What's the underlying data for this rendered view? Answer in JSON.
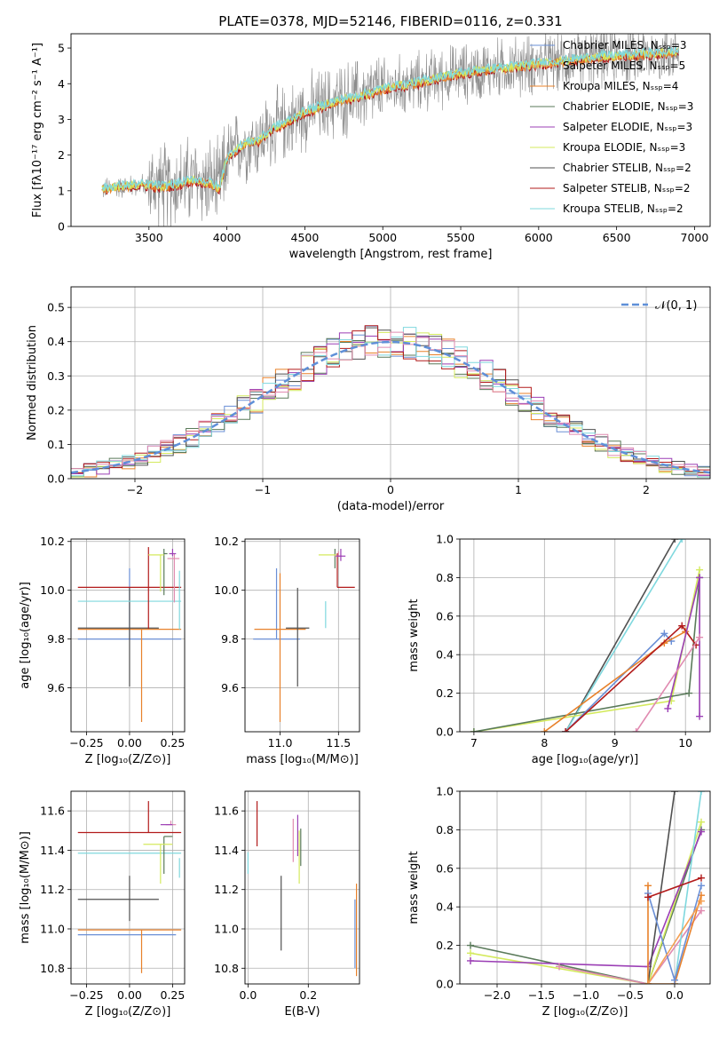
{
  "colors": {
    "chabrier_miles": "#6a8fd6",
    "salpeter_miles": "#f5a052",
    "kroupa_miles": "#e8812a",
    "chabrier_elodie": "#5a7a5a",
    "salpeter_elodie": "#9b3fb5",
    "kroupa_elodie": "#d4ea5e",
    "chabrier_stelib": "#505050",
    "salpeter_stelib": "#b21b1b",
    "kroupa_stelib": "#7fd8de",
    "extra_pink": "#e08ab0",
    "data_gray": "#8c8c8c",
    "normal_curve": "#5f8fd8",
    "grid": "#b0b0b0"
  },
  "chart_data": [
    {
      "id": "spectrum",
      "type": "line",
      "title": "PLATE=0378, MJD=52146, FIBERID=0116, z=0.331",
      "xlabel": "wavelength [Angstrom, rest frame]",
      "ylabel": "Flux [fλ10⁻¹⁷ erg cm⁻² s⁻¹ A⁻¹]",
      "xlim": [
        3000,
        7100
      ],
      "ylim": [
        0,
        5.4
      ],
      "xticks": [
        3500,
        4000,
        4500,
        5000,
        5500,
        6000,
        6500,
        7000
      ],
      "yticks": [
        0,
        1,
        2,
        3,
        4,
        5
      ],
      "grid": false,
      "legend_position": "top-right",
      "legend": [
        "Chabrier MILES, Nₛₛₚ=3",
        "Salpeter MILES, Nₛₛₚ=5",
        "Kroupa MILES, Nₛₛₚ=4",
        "Chabrier ELODIE, Nₛₛₚ=3",
        "Salpeter ELODIE, Nₛₛₚ=3",
        "Kroupa ELODIE, Nₛₛₚ=3",
        "Chabrier STELIB, Nₛₛₚ=2",
        "Salpeter STELIB, Nₛₛₚ=2",
        "Kroupa STELIB, Nₛₛₚ=2"
      ],
      "model_continuum": {
        "x": [
          3200,
          3300,
          3400,
          3500,
          3600,
          3700,
          3800,
          3900,
          3950,
          4000,
          4100,
          4200,
          4300,
          4400,
          4500,
          4600,
          4700,
          4800,
          4900,
          5000,
          5200,
          5400,
          5600,
          5800,
          6000,
          6200,
          6400,
          6600,
          6800,
          6900
        ],
        "y": [
          1.05,
          1.1,
          1.15,
          1.15,
          1.1,
          1.2,
          1.3,
          1.2,
          1.05,
          1.9,
          2.3,
          2.4,
          2.75,
          2.95,
          3.2,
          3.35,
          3.5,
          3.6,
          3.7,
          3.85,
          4.0,
          4.2,
          4.35,
          4.45,
          4.55,
          4.65,
          4.75,
          4.8,
          4.85,
          4.9
        ]
      },
      "data_noise_amplitude": [
        0.3,
        1.4
      ]
    },
    {
      "id": "residuals",
      "type": "line",
      "xlabel": "(data-model)/error",
      "ylabel": "Normed distribution",
      "xlim": [
        -2.5,
        2.5
      ],
      "ylim": [
        0,
        0.56
      ],
      "xticks": [
        -2,
        -1,
        0,
        1,
        2
      ],
      "yticks": [
        0.0,
        0.1,
        0.2,
        0.3,
        0.4,
        0.5
      ],
      "grid": true,
      "legend_position": "top-right",
      "legend": [
        "𝒩(0, 1)"
      ],
      "bin_width": 0.1,
      "bin_start": -2.5,
      "normal": {
        "mean": 0,
        "sigma": 1
      }
    },
    {
      "id": "age_vs_Z",
      "type": "scatter",
      "xlabel": "Z [log₁₀(Z/Z⊙)]",
      "ylabel": "age  [log₁₀(age/yr)]",
      "xlim": [
        -0.34,
        0.32
      ],
      "ylim": [
        9.42,
        10.21
      ],
      "xticks": [
        -0.25,
        0.0,
        0.25
      ],
      "xticklabels": [
        "−0.25",
        "0.00",
        "0.25"
      ],
      "yticks": [
        9.6,
        9.8,
        10.0,
        10.2
      ],
      "grid": true,
      "points": [
        {
          "c": "chabrier_miles",
          "x": 0.0,
          "xerr": [
            0.3,
            0.3
          ],
          "y": 9.8,
          "yerr": [
            0.0,
            0.29
          ]
        },
        {
          "c": "kroupa_miles",
          "x": 0.07,
          "xerr": [
            0.37,
            0.23
          ],
          "y": 9.84,
          "yerr": [
            0.38,
            0.0
          ]
        },
        {
          "c": "chabrier_stelib",
          "x": 0.0,
          "xerr": [
            0.3,
            0.17
          ],
          "y": 9.845,
          "yerr": [
            0.24,
            0.165
          ]
        },
        {
          "c": "kroupa_stelib",
          "x": 0.0,
          "xerr": [
            0.3,
            0.3
          ],
          "y": 9.955,
          "yerr": [
            0.0,
            0.0
          ]
        },
        {
          "c": "salpeter_stelib",
          "x": 0.11,
          "xerr": [
            0.41,
            0.19
          ],
          "y": 10.012,
          "yerr": [
            0.17,
            0.165
          ]
        },
        {
          "c": "chabrier_elodie",
          "x": 0.2,
          "xerr": [
            0.0,
            0.02
          ],
          "y": 10.15,
          "yerr": [
            0.17,
            0.02
          ]
        },
        {
          "c": "kroupa_elodie",
          "x": 0.18,
          "xerr": [
            0.07,
            0.02
          ],
          "y": 10.145,
          "yerr": [
            0.15,
            0.0
          ]
        },
        {
          "c": "extra_pink",
          "x": 0.26,
          "xerr": [
            0.04,
            0.03
          ],
          "y": 10.13,
          "yerr": [
            0.18,
            0.02
          ]
        },
        {
          "c": "salpeter_elodie",
          "x": 0.25,
          "xerr": [
            0.02,
            0.02
          ],
          "y": 10.15,
          "yerr": [
            0.01,
            0.02
          ]
        },
        {
          "c": "kroupa_stelib",
          "x": 0.29,
          "xerr": [
            0.0,
            0.0
          ],
          "y": 10.08,
          "yerr": [
            0.24,
            0.0
          ]
        }
      ]
    },
    {
      "id": "age_vs_mass",
      "type": "scatter",
      "xlabel": "mass [log₁₀(M/M⊙)]",
      "ylabel": "",
      "xlim": [
        10.7,
        11.68
      ],
      "ylim": [
        9.42,
        10.21
      ],
      "xticks": [
        11.0,
        11.5
      ],
      "yticks": [
        9.6,
        9.8,
        10.0,
        10.2
      ],
      "grid": true,
      "points": [
        {
          "c": "chabrier_miles",
          "x": 10.97,
          "xerr": [
            0.2,
            0.2
          ],
          "y": 9.8,
          "yerr": [
            0.0,
            0.29
          ]
        },
        {
          "c": "kroupa_miles",
          "x": 11.0,
          "xerr": [
            0.22,
            0.22
          ],
          "y": 9.84,
          "yerr": [
            0.38,
            0.23
          ]
        },
        {
          "c": "chabrier_stelib",
          "x": 11.15,
          "xerr": [
            0.1,
            0.1
          ],
          "y": 9.845,
          "yerr": [
            0.24,
            0.165
          ]
        },
        {
          "c": "kroupa_stelib",
          "x": 11.39,
          "xerr": [
            0.0,
            0.0
          ],
          "y": 9.955,
          "yerr": [
            0.11,
            0.0
          ]
        },
        {
          "c": "salpeter_stelib",
          "x": 11.49,
          "xerr": [
            0.0,
            0.15
          ],
          "y": 10.012,
          "yerr": [
            0.0,
            0.14
          ]
        },
        {
          "c": "chabrier_elodie",
          "x": 11.47,
          "xerr": [
            0.0,
            0.0
          ],
          "y": 10.15,
          "yerr": [
            0.06,
            0.02
          ]
        },
        {
          "c": "kroupa_elodie",
          "x": 11.43,
          "xerr": [
            0.1,
            0.05
          ],
          "y": 10.145,
          "yerr": [
            0.0,
            0.0
          ]
        },
        {
          "c": "extra_pink",
          "x": 11.5,
          "xerr": [
            0.03,
            0.03
          ],
          "y": 10.14,
          "yerr": [
            0.0,
            0.02
          ]
        },
        {
          "c": "salpeter_elodie",
          "x": 11.52,
          "xerr": [
            0.04,
            0.04
          ],
          "y": 10.14,
          "yerr": [
            0.02,
            0.03
          ]
        }
      ]
    },
    {
      "id": "mass_weight_vs_age",
      "type": "line",
      "xlabel": "age  [log₁₀(age/yr)]",
      "ylabel": "mass weight",
      "xlim": [
        6.8,
        10.35
      ],
      "ylim": [
        0,
        1.0
      ],
      "xticks": [
        7,
        8,
        9,
        10
      ],
      "yticks": [
        0.0,
        0.2,
        0.4,
        0.6,
        0.8,
        1.0
      ],
      "grid": true,
      "series": [
        {
          "c": "chabrier_stelib",
          "x": [
            8.3,
            9.85
          ],
          "y": [
            0.0,
            1.0
          ]
        },
        {
          "c": "kroupa_stelib",
          "x": [
            8.3,
            9.95
          ],
          "y": [
            0.0,
            1.0
          ]
        },
        {
          "c": "kroupa_elodie",
          "x": [
            7.0,
            9.8,
            10.2
          ],
          "y": [
            0.0,
            0.16,
            0.84
          ]
        },
        {
          "c": "chabrier_elodie",
          "x": [
            7.0,
            10.05,
            10.2
          ],
          "y": [
            0.0,
            0.2,
            0.8
          ]
        },
        {
          "c": "chabrier_miles",
          "x": [
            8.3,
            9.7,
            9.8
          ],
          "y": [
            0.0,
            0.51,
            0.47
          ]
        },
        {
          "c": "kroupa_miles",
          "x": [
            8.0,
            9.7,
            10.0
          ],
          "y": [
            0.0,
            0.46,
            0.52
          ]
        },
        {
          "c": "salpeter_stelib",
          "x": [
            8.3,
            9.95,
            10.15
          ],
          "y": [
            0.0,
            0.55,
            0.45
          ]
        },
        {
          "c": "salpeter_elodie",
          "x": [
            9.75,
            10.2,
            10.2
          ],
          "y": [
            0.12,
            0.8,
            0.08
          ]
        },
        {
          "c": "extra_pink",
          "x": [
            9.3,
            10.2
          ],
          "y": [
            0.0,
            0.49
          ]
        }
      ]
    },
    {
      "id": "mass_vs_Z",
      "type": "scatter",
      "xlabel": "Z [log₁₀(Z/Z⊙)]",
      "ylabel": "mass [log₁₀(M/M⊙)]",
      "xlim": [
        -0.34,
        0.32
      ],
      "ylim": [
        10.72,
        11.7
      ],
      "xticks": [
        -0.25,
        0.0,
        0.25
      ],
      "xticklabels": [
        "−0.25",
        "0.00",
        "0.25"
      ],
      "yticks": [
        10.8,
        11.0,
        11.2,
        11.4,
        11.6
      ],
      "grid": true,
      "points": [
        {
          "c": "chabrier_miles",
          "x": 0.0,
          "xerr": [
            0.3,
            0.27
          ],
          "y": 10.97,
          "yerr": [
            0.0,
            0.0
          ]
        },
        {
          "c": "kroupa_miles",
          "x": 0.07,
          "xerr": [
            0.37,
            0.23
          ],
          "y": 10.995,
          "yerr": [
            0.22,
            0.0
          ]
        },
        {
          "c": "chabrier_stelib",
          "x": 0.0,
          "xerr": [
            0.3,
            0.17
          ],
          "y": 11.15,
          "yerr": [
            0.11,
            0.12
          ]
        },
        {
          "c": "kroupa_stelib",
          "x": 0.0,
          "xerr": [
            0.3,
            0.3
          ],
          "y": 11.385,
          "yerr": [
            0.0,
            0.0
          ]
        },
        {
          "c": "salpeter_stelib",
          "x": 0.11,
          "xerr": [
            0.41,
            0.19
          ],
          "y": 11.49,
          "yerr": [
            0.0,
            0.16
          ]
        },
        {
          "c": "chabrier_elodie",
          "x": 0.2,
          "xerr": [
            0.0,
            0.05
          ],
          "y": 11.47,
          "yerr": [
            0.19,
            0.0
          ]
        },
        {
          "c": "kroupa_elodie",
          "x": 0.18,
          "xerr": [
            0.1,
            0.07
          ],
          "y": 11.43,
          "yerr": [
            0.2,
            0.0
          ]
        },
        {
          "c": "extra_pink",
          "x": 0.24,
          "xerr": [
            0.03,
            0.03
          ],
          "y": 11.53,
          "yerr": [
            0.0,
            0.02
          ]
        },
        {
          "c": "salpeter_elodie",
          "x": 0.25,
          "xerr": [
            0.07,
            0.0
          ],
          "y": 11.53,
          "yerr": [
            0.0,
            0.0
          ]
        },
        {
          "c": "kroupa_stelib",
          "x": 0.29,
          "xerr": [
            0.0,
            0.0
          ],
          "y": 11.36,
          "yerr": [
            0.1,
            0.0
          ]
        }
      ]
    },
    {
      "id": "mass_vs_ebv",
      "type": "scatter",
      "xlabel": "E(B-V)",
      "ylabel": "",
      "xlim": [
        -0.01,
        0.37
      ],
      "ylim": [
        10.72,
        11.7
      ],
      "xticks": [
        0.0,
        0.2
      ],
      "xticklabels": [
        "0.0",
        "0.2"
      ],
      "yticks": [
        10.8,
        11.0,
        11.2,
        11.4,
        11.6
      ],
      "grid": true,
      "points": [
        {
          "c": "kroupa_stelib",
          "x": 0.0,
          "xerr": [
            0.0,
            0.0
          ],
          "y": 11.39,
          "yerr": [
            0.11,
            0.0
          ]
        },
        {
          "c": "salpeter_stelib",
          "x": 0.03,
          "xerr": [
            0.0,
            0.0
          ],
          "y": 11.53,
          "yerr": [
            0.11,
            0.12
          ]
        },
        {
          "c": "chabrier_stelib",
          "x": 0.11,
          "xerr": [
            0.0,
            0.0
          ],
          "y": 11.08,
          "yerr": [
            0.19,
            0.19
          ]
        },
        {
          "c": "extra_pink",
          "x": 0.15,
          "xerr": [
            0.0,
            0.0
          ],
          "y": 11.45,
          "yerr": [
            0.11,
            0.11
          ]
        },
        {
          "c": "salpeter_elodie",
          "x": 0.165,
          "xerr": [
            0.0,
            0.0
          ],
          "y": 11.5,
          "yerr": [
            0.13,
            0.08
          ]
        },
        {
          "c": "kroupa_elodie",
          "x": 0.17,
          "xerr": [
            0.0,
            0.0
          ],
          "y": 11.4,
          "yerr": [
            0.17,
            0.1
          ]
        },
        {
          "c": "chabrier_elodie",
          "x": 0.175,
          "xerr": [
            0.0,
            0.0
          ],
          "y": 11.44,
          "yerr": [
            0.12,
            0.07
          ]
        },
        {
          "c": "kroupa_miles",
          "x": 0.36,
          "xerr": [
            0.0,
            0.0
          ],
          "y": 11.0,
          "yerr": [
            0.24,
            0.23
          ]
        },
        {
          "c": "chabrier_miles",
          "x": 0.355,
          "xerr": [
            0.0,
            0.0
          ],
          "y": 11.0,
          "yerr": [
            0.2,
            0.15
          ]
        }
      ]
    },
    {
      "id": "mass_weight_vs_Z",
      "type": "line",
      "xlabel": "Z [log₁₀(Z/Z⊙)]",
      "ylabel": "mass weight",
      "xlim": [
        -2.42,
        0.4
      ],
      "ylim": [
        0,
        1.0
      ],
      "xticks": [
        -2.0,
        -1.5,
        -1.0,
        -0.5,
        0.0
      ],
      "xticklabels": [
        "−2.0",
        "−1.5",
        "−1.0",
        "−0.5",
        "0.0"
      ],
      "yticks": [
        0.0,
        0.2,
        0.4,
        0.6,
        0.8,
        1.0
      ],
      "grid": true,
      "series": [
        {
          "c": "chabrier_elodie",
          "x": [
            -2.3,
            -0.3,
            0.3
          ],
          "y": [
            0.2,
            0.0,
            0.8
          ]
        },
        {
          "c": "kroupa_elodie",
          "x": [
            -2.3,
            -0.3,
            0.3
          ],
          "y": [
            0.16,
            0.0,
            0.84
          ]
        },
        {
          "c": "salpeter_elodie",
          "x": [
            -2.3,
            -0.3,
            0.3
          ],
          "y": [
            0.12,
            0.09,
            0.79
          ]
        },
        {
          "c": "extra_pink",
          "x": [
            -1.3,
            -0.3,
            0.3
          ],
          "y": [
            0.09,
            0.0,
            0.38
          ]
        },
        {
          "c": "chabrier_stelib",
          "x": [
            -0.3,
            0.0
          ],
          "y": [
            0.0,
            1.0
          ]
        },
        {
          "c": "kroupa_stelib",
          "x": [
            0.0,
            0.3
          ],
          "y": [
            0.0,
            1.0
          ]
        },
        {
          "c": "kroupa_miles",
          "x": [
            -0.3,
            -0.3,
            0.0,
            0.3
          ],
          "y": [
            0.51,
            0.0,
            0.0,
            0.46
          ]
        },
        {
          "c": "chabrier_miles",
          "x": [
            -0.3,
            0.0,
            0.3
          ],
          "y": [
            0.47,
            0.02,
            0.51
          ]
        },
        {
          "c": "salpeter_stelib",
          "x": [
            -0.3,
            0.3
          ],
          "y": [
            0.45,
            0.55
          ]
        },
        {
          "c": "salpeter_miles",
          "x": [
            -0.3,
            0.3
          ],
          "y": [
            0.0,
            0.43
          ]
        }
      ]
    }
  ]
}
